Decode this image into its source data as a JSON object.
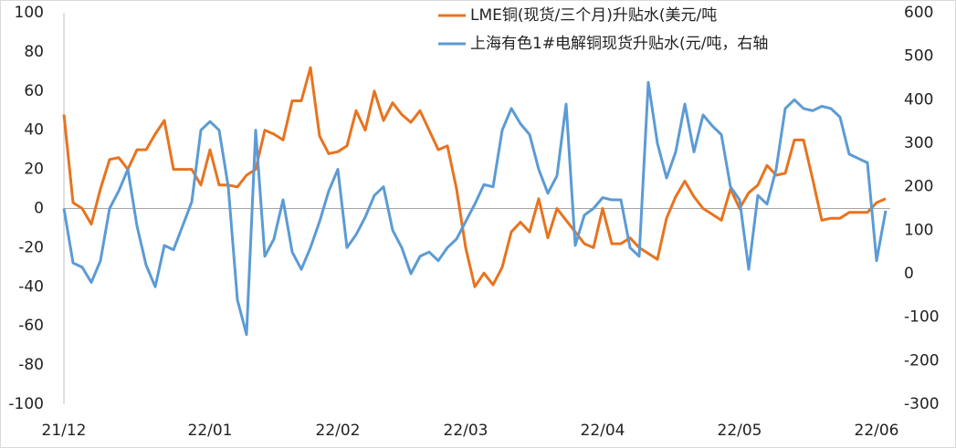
{
  "chart_data": {
    "type": "line",
    "categories": [
      "21/12",
      null,
      null,
      null,
      null,
      null,
      null,
      null,
      null,
      null,
      null,
      null,
      null,
      null,
      null,
      null,
      "22/01",
      null,
      null,
      null,
      null,
      null,
      null,
      null,
      null,
      null,
      null,
      null,
      null,
      null,
      "22/02",
      null,
      null,
      null,
      null,
      null,
      null,
      null,
      null,
      null,
      null,
      null,
      null,
      null,
      "22/03",
      null,
      null,
      null,
      null,
      null,
      null,
      null,
      null,
      null,
      null,
      null,
      null,
      null,
      null,
      "22/04",
      null,
      null,
      null,
      null,
      null,
      null,
      null,
      null,
      null,
      null,
      null,
      null,
      null,
      null,
      "22/05",
      null,
      null,
      null,
      null,
      null,
      null,
      null,
      null,
      null,
      null,
      null,
      null,
      null,
      null,
      "22/06",
      null
    ],
    "series": [
      {
        "name": "LME铜(现货/三个月)升贴水(美元/吨",
        "color": "#e8731f",
        "values": [
          48,
          3,
          0,
          -8,
          10,
          25,
          26,
          20,
          30,
          30,
          38,
          45,
          20,
          20,
          20,
          12,
          30,
          12,
          12,
          11,
          17,
          20,
          40,
          38,
          35,
          55,
          55,
          72,
          37,
          28,
          29,
          32,
          50,
          40,
          60,
          45,
          54,
          48,
          44,
          50,
          40,
          30,
          32,
          10,
          -20,
          -40,
          -33,
          -39,
          -30,
          -12,
          -7,
          -12,
          5,
          -15,
          0,
          -6,
          -12,
          -18,
          -20,
          0,
          -18,
          -18,
          -15,
          -20,
          -23,
          -26,
          -5,
          6,
          14,
          6,
          0,
          -3,
          -6,
          10,
          0,
          8,
          12,
          22,
          17,
          18,
          35,
          35,
          15,
          -6,
          -5,
          -5,
          -2,
          -2,
          -2,
          3,
          5
        ]
      },
      {
        "name": "上海有色1#电解铜现货升贴水(元/吨，右轴",
        "color": "#5b9bd5",
        "axis": "y2",
        "values": [
          150,
          25,
          15,
          -20,
          30,
          150,
          190,
          240,
          110,
          20,
          -30,
          65,
          55,
          110,
          165,
          330,
          350,
          330,
          200,
          -60,
          -140,
          330,
          40,
          80,
          170,
          50,
          10,
          60,
          120,
          190,
          240,
          60,
          90,
          130,
          180,
          200,
          100,
          60,
          0,
          40,
          50,
          30,
          60,
          80,
          120,
          160,
          205,
          200,
          330,
          380,
          345,
          320,
          240,
          185,
          225,
          390,
          65,
          135,
          150,
          175,
          170,
          170,
          60,
          40,
          440,
          300,
          220,
          280,
          390,
          280,
          365,
          340,
          320,
          200,
          170,
          10,
          180,
          160,
          240,
          380,
          400,
          380,
          375,
          385,
          380,
          360,
          275,
          265,
          255,
          30,
          145
        ]
      }
    ],
    "ylim": [
      -100,
      100
    ],
    "yticks": [
      -100,
      -80,
      -60,
      -40,
      -20,
      0,
      20,
      40,
      60,
      80,
      100
    ],
    "y2lim": [
      -300,
      600
    ],
    "y2ticks": [
      -300,
      -200,
      -100,
      0,
      100,
      200,
      300,
      400,
      500,
      600
    ],
    "grid": false,
    "legend": "top"
  }
}
